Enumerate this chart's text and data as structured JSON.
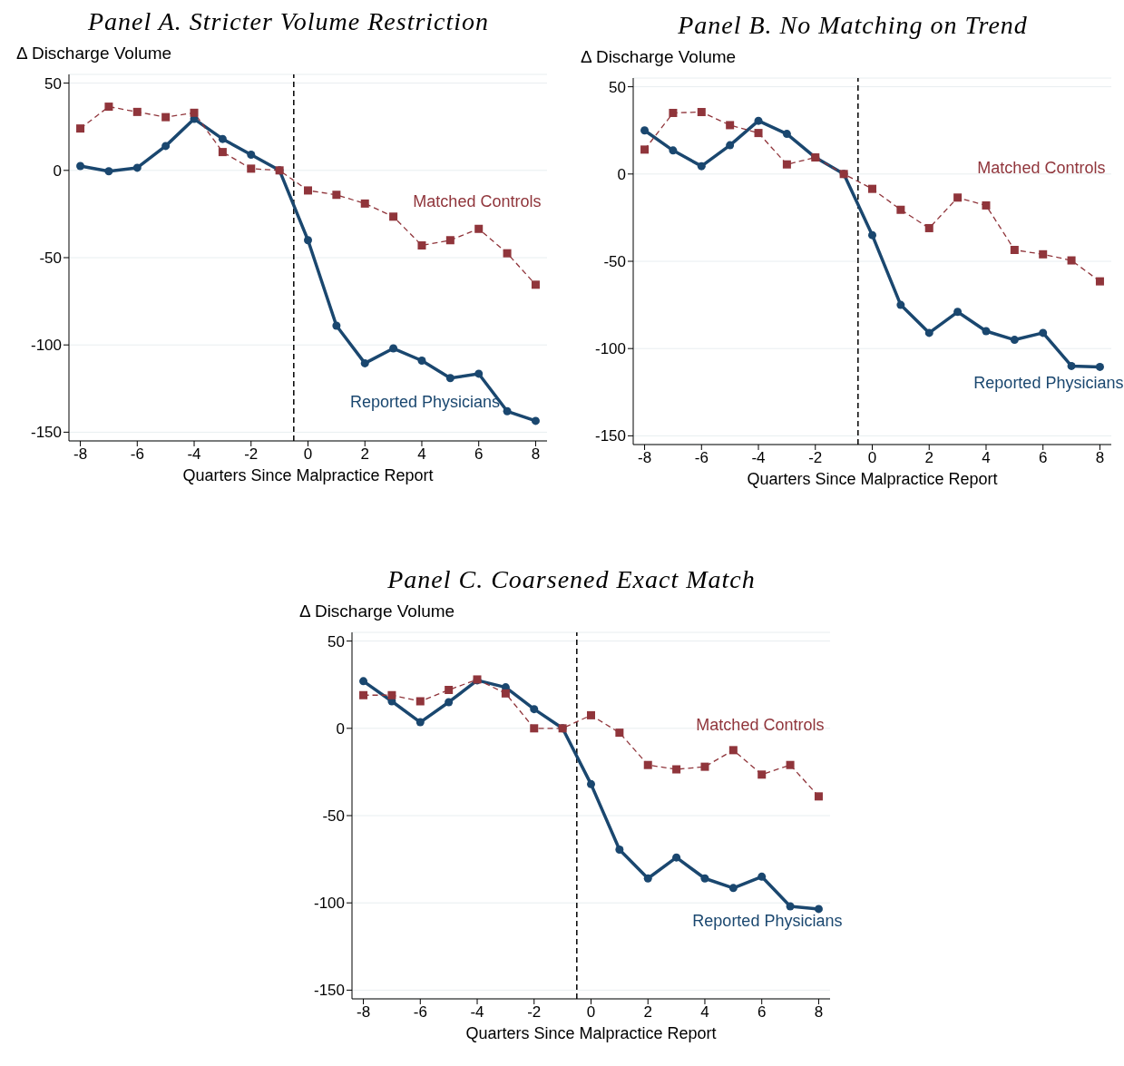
{
  "chart_data": [
    {
      "type": "line",
      "title": "Panel A. Stricter Volume Restriction",
      "xlabel": "Quarters Since Malpractice Report",
      "ylabel": "Δ Discharge Volume",
      "x": [
        -8,
        -7,
        -6,
        -5,
        -4,
        -3,
        -2,
        -1,
        0,
        1,
        2,
        3,
        4,
        5,
        6,
        7,
        8
      ],
      "xlim": [
        -8.4,
        8.4
      ],
      "xticks": [
        -8,
        -6,
        -4,
        -2,
        0,
        2,
        4,
        6,
        8
      ],
      "ylim": [
        -155,
        55
      ],
      "yticks": [
        -150,
        -100,
        -50,
        0,
        50
      ],
      "grid": "y",
      "ref_lines": [
        {
          "axis": "x",
          "value": -0.5,
          "line_style": "dashed",
          "color": "#000000"
        }
      ],
      "series": [
        {
          "name": "Reported Physicians",
          "color": "#1a476f",
          "marker": "circle",
          "line_style": "solid",
          "values": [
            2.5,
            -0.5,
            1.5,
            14,
            29.5,
            18,
            9,
            0,
            -40,
            -89,
            -110.5,
            -102,
            -109,
            -119,
            -116.5,
            -138,
            -143.5
          ]
        },
        {
          "name": "Matched Controls",
          "color": "#90353b",
          "marker": "square",
          "line_style": "dashed",
          "values": [
            24,
            36.5,
            33.5,
            30.5,
            33,
            10.5,
            1,
            0,
            -11.5,
            -14,
            -19,
            -26.5,
            -43,
            -40,
            -33.5,
            -47.5,
            -65.5
          ]
        }
      ]
    },
    {
      "type": "line",
      "title": "Panel B. No Matching on Trend",
      "xlabel": "Quarters Since Malpractice Report",
      "ylabel": "Δ Discharge Volume",
      "x": [
        -8,
        -7,
        -6,
        -5,
        -4,
        -3,
        -2,
        -1,
        0,
        1,
        2,
        3,
        4,
        5,
        6,
        7,
        8
      ],
      "xlim": [
        -8.4,
        8.4
      ],
      "xticks": [
        -8,
        -6,
        -4,
        -2,
        0,
        2,
        4,
        6,
        8
      ],
      "ylim": [
        -155,
        55
      ],
      "yticks": [
        -150,
        -100,
        -50,
        0,
        50
      ],
      "grid": "y",
      "ref_lines": [
        {
          "axis": "x",
          "value": -0.5,
          "line_style": "dashed",
          "color": "#000000"
        }
      ],
      "series": [
        {
          "name": "Reported Physicians",
          "color": "#1a476f",
          "marker": "circle",
          "line_style": "solid",
          "values": [
            25,
            13.5,
            4.5,
            16.5,
            30.5,
            23,
            9.5,
            0,
            -35,
            -75,
            -91,
            -79,
            -90,
            -95,
            -91,
            -110,
            -110.5
          ]
        },
        {
          "name": "Matched Controls",
          "color": "#90353b",
          "marker": "square",
          "line_style": "dashed",
          "values": [
            14,
            35,
            35.5,
            28,
            23.5,
            5.5,
            9.5,
            0,
            -8.5,
            -20.5,
            -31,
            -13.5,
            -18,
            -43.5,
            -46,
            -49.5,
            -61.5
          ]
        }
      ]
    },
    {
      "type": "line",
      "title": "Panel C. Coarsened Exact Match",
      "xlabel": "Quarters Since Malpractice Report",
      "ylabel": "Δ Discharge Volume",
      "x": [
        -8,
        -7,
        -6,
        -5,
        -4,
        -3,
        -2,
        -1,
        0,
        1,
        2,
        3,
        4,
        5,
        6,
        7,
        8
      ],
      "xlim": [
        -8.4,
        8.4
      ],
      "xticks": [
        -8,
        -6,
        -4,
        -2,
        0,
        2,
        4,
        6,
        8
      ],
      "ylim": [
        -155,
        55
      ],
      "yticks": [
        -150,
        -100,
        -50,
        0,
        50
      ],
      "grid": "y",
      "ref_lines": [
        {
          "axis": "x",
          "value": -0.5,
          "line_style": "dashed",
          "color": "#000000"
        }
      ],
      "series": [
        {
          "name": "Reported Physicians",
          "color": "#1a476f",
          "marker": "circle",
          "line_style": "solid",
          "values": [
            27,
            15.5,
            3.5,
            15,
            27.5,
            23.5,
            11,
            0,
            -32,
            -69.5,
            -86,
            -74,
            -86,
            -91.5,
            -85,
            -102,
            -103.5
          ]
        },
        {
          "name": "Matched Controls",
          "color": "#90353b",
          "marker": "square",
          "line_style": "dashed",
          "values": [
            19,
            19,
            15.5,
            22,
            28,
            20,
            0,
            0,
            7.5,
            -2.5,
            -21,
            -23.5,
            -22,
            -12.5,
            -26.5,
            -21,
            -39
          ]
        }
      ]
    }
  ]
}
